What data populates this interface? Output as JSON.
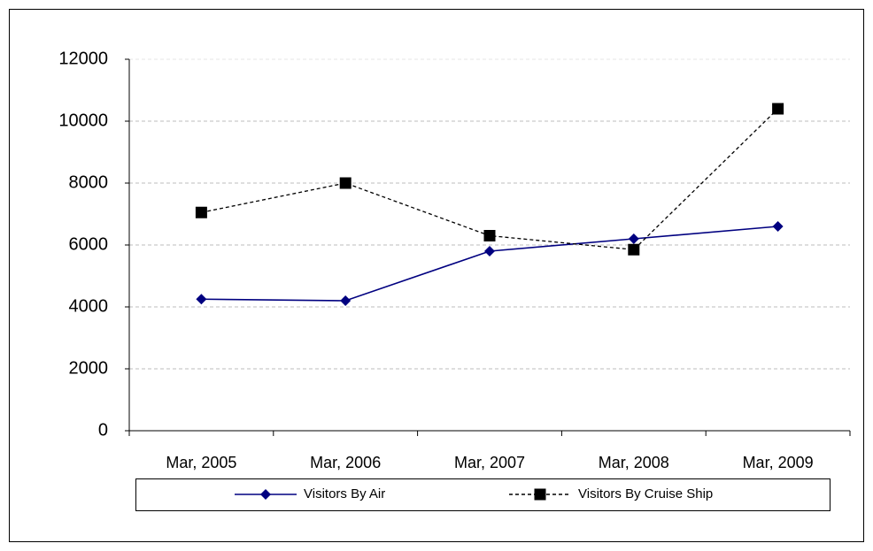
{
  "chart_data": {
    "type": "line",
    "categories": [
      "Mar, 2005",
      "Mar, 2006",
      "Mar, 2007",
      "Mar, 2008",
      "Mar, 2009"
    ],
    "series": [
      {
        "name": "Visitors By Air",
        "color": "#000080",
        "marker": "diamond",
        "dashed": false,
        "values": [
          4250,
          4200,
          5800,
          6200,
          6600
        ]
      },
      {
        "name": "Visitors By Cruise Ship",
        "color": "#000000",
        "marker": "square",
        "dashed": true,
        "values": [
          7050,
          8000,
          6300,
          5850,
          10400
        ]
      }
    ],
    "ylim": [
      0,
      12000
    ],
    "yticks": [
      0,
      2000,
      4000,
      6000,
      8000,
      10000,
      12000
    ],
    "grid": true,
    "legend": "bottom"
  }
}
